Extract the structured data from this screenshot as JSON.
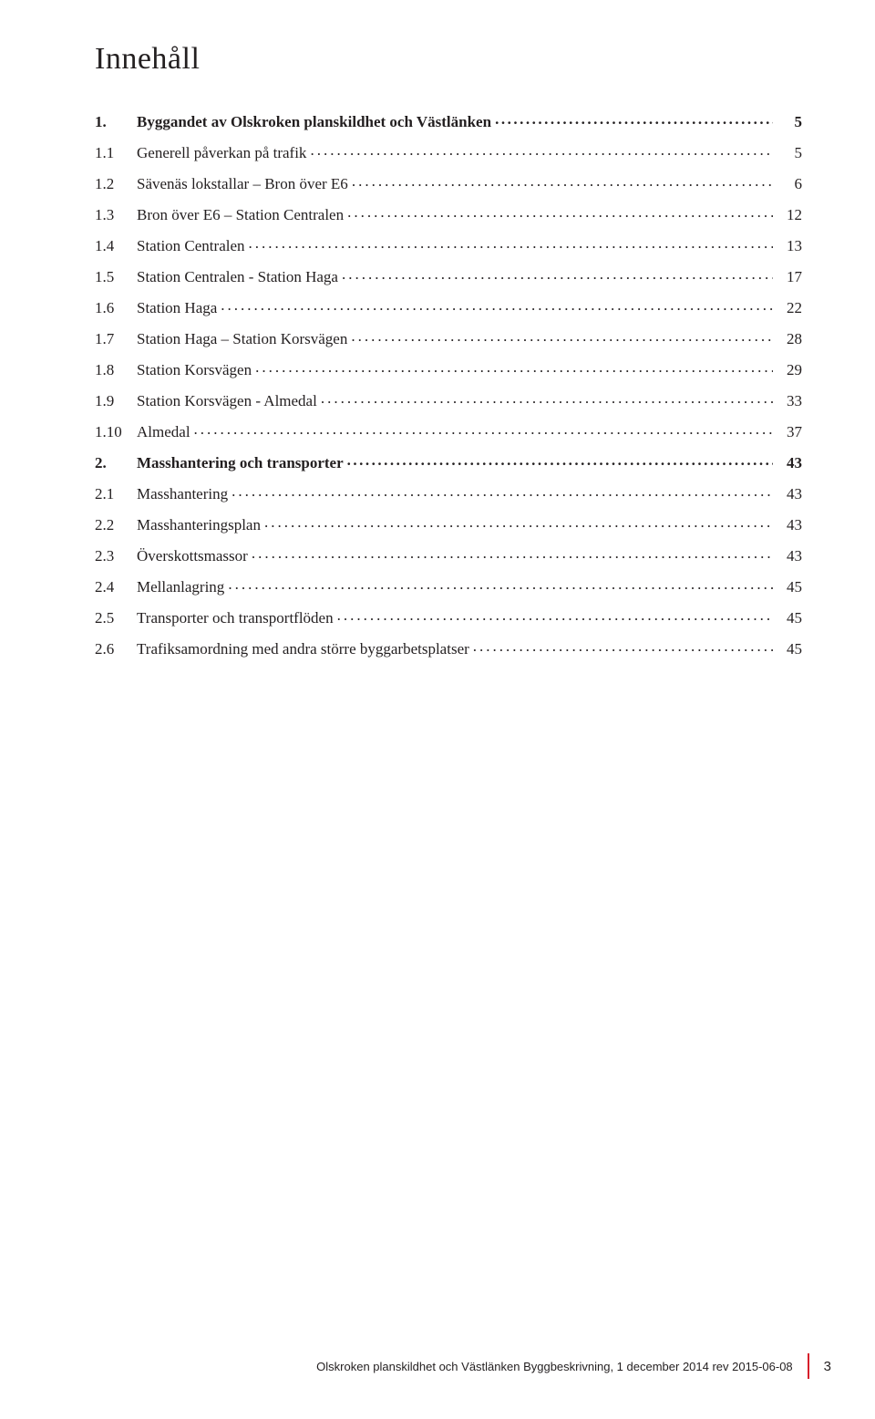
{
  "title": "Innehåll",
  "toc": [
    {
      "type": "section",
      "num": "1.",
      "label": "Byggandet av Olskroken planskildhet och Västlänken",
      "page": "5"
    },
    {
      "type": "item",
      "num": "1.1",
      "label": "Generell påverkan på trafik",
      "page": "5"
    },
    {
      "type": "item",
      "num": "1.2",
      "label": "Sävenäs lokstallar – Bron över E6",
      "page": "6"
    },
    {
      "type": "item",
      "num": "1.3",
      "label": "Bron över E6 – Station Centralen",
      "page": "12"
    },
    {
      "type": "item",
      "num": "1.4",
      "label": "Station Centralen",
      "page": "13"
    },
    {
      "type": "item",
      "num": "1.5",
      "label": "Station Centralen - Station Haga",
      "page": "17"
    },
    {
      "type": "item",
      "num": "1.6",
      "label": "Station Haga",
      "page": "22"
    },
    {
      "type": "item",
      "num": "1.7",
      "label": "Station Haga – Station Korsvägen",
      "page": "28"
    },
    {
      "type": "item",
      "num": "1.8",
      "label": "Station Korsvägen",
      "page": "29"
    },
    {
      "type": "item",
      "num": "1.9",
      "label": "Station Korsvägen - Almedal",
      "page": "33"
    },
    {
      "type": "item",
      "num": "1.10",
      "label": "Almedal",
      "page": "37"
    },
    {
      "type": "section",
      "num": "2.",
      "label": "Masshantering och transporter",
      "page": "43"
    },
    {
      "type": "item",
      "num": "2.1",
      "label": "Masshantering",
      "page": "43"
    },
    {
      "type": "item",
      "num": "2.2",
      "label": "Masshanteringsplan",
      "page": "43"
    },
    {
      "type": "item",
      "num": "2.3",
      "label": "Överskottsmassor",
      "page": "43"
    },
    {
      "type": "item",
      "num": "2.4",
      "label": "Mellanlagring",
      "page": "45"
    },
    {
      "type": "item",
      "num": "2.5",
      "label": "Transporter och transportflöden",
      "page": "45"
    },
    {
      "type": "item",
      "num": "2.6",
      "label": "Trafiksamordning med andra större byggarbetsplatser",
      "page": "45"
    }
  ],
  "footer": {
    "text": "Olskroken planskildhet och Västlänken Byggbeskrivning, 1 december 2014 rev 2015-06-08",
    "page_number": "3",
    "bar_color": "#d71f2b"
  }
}
